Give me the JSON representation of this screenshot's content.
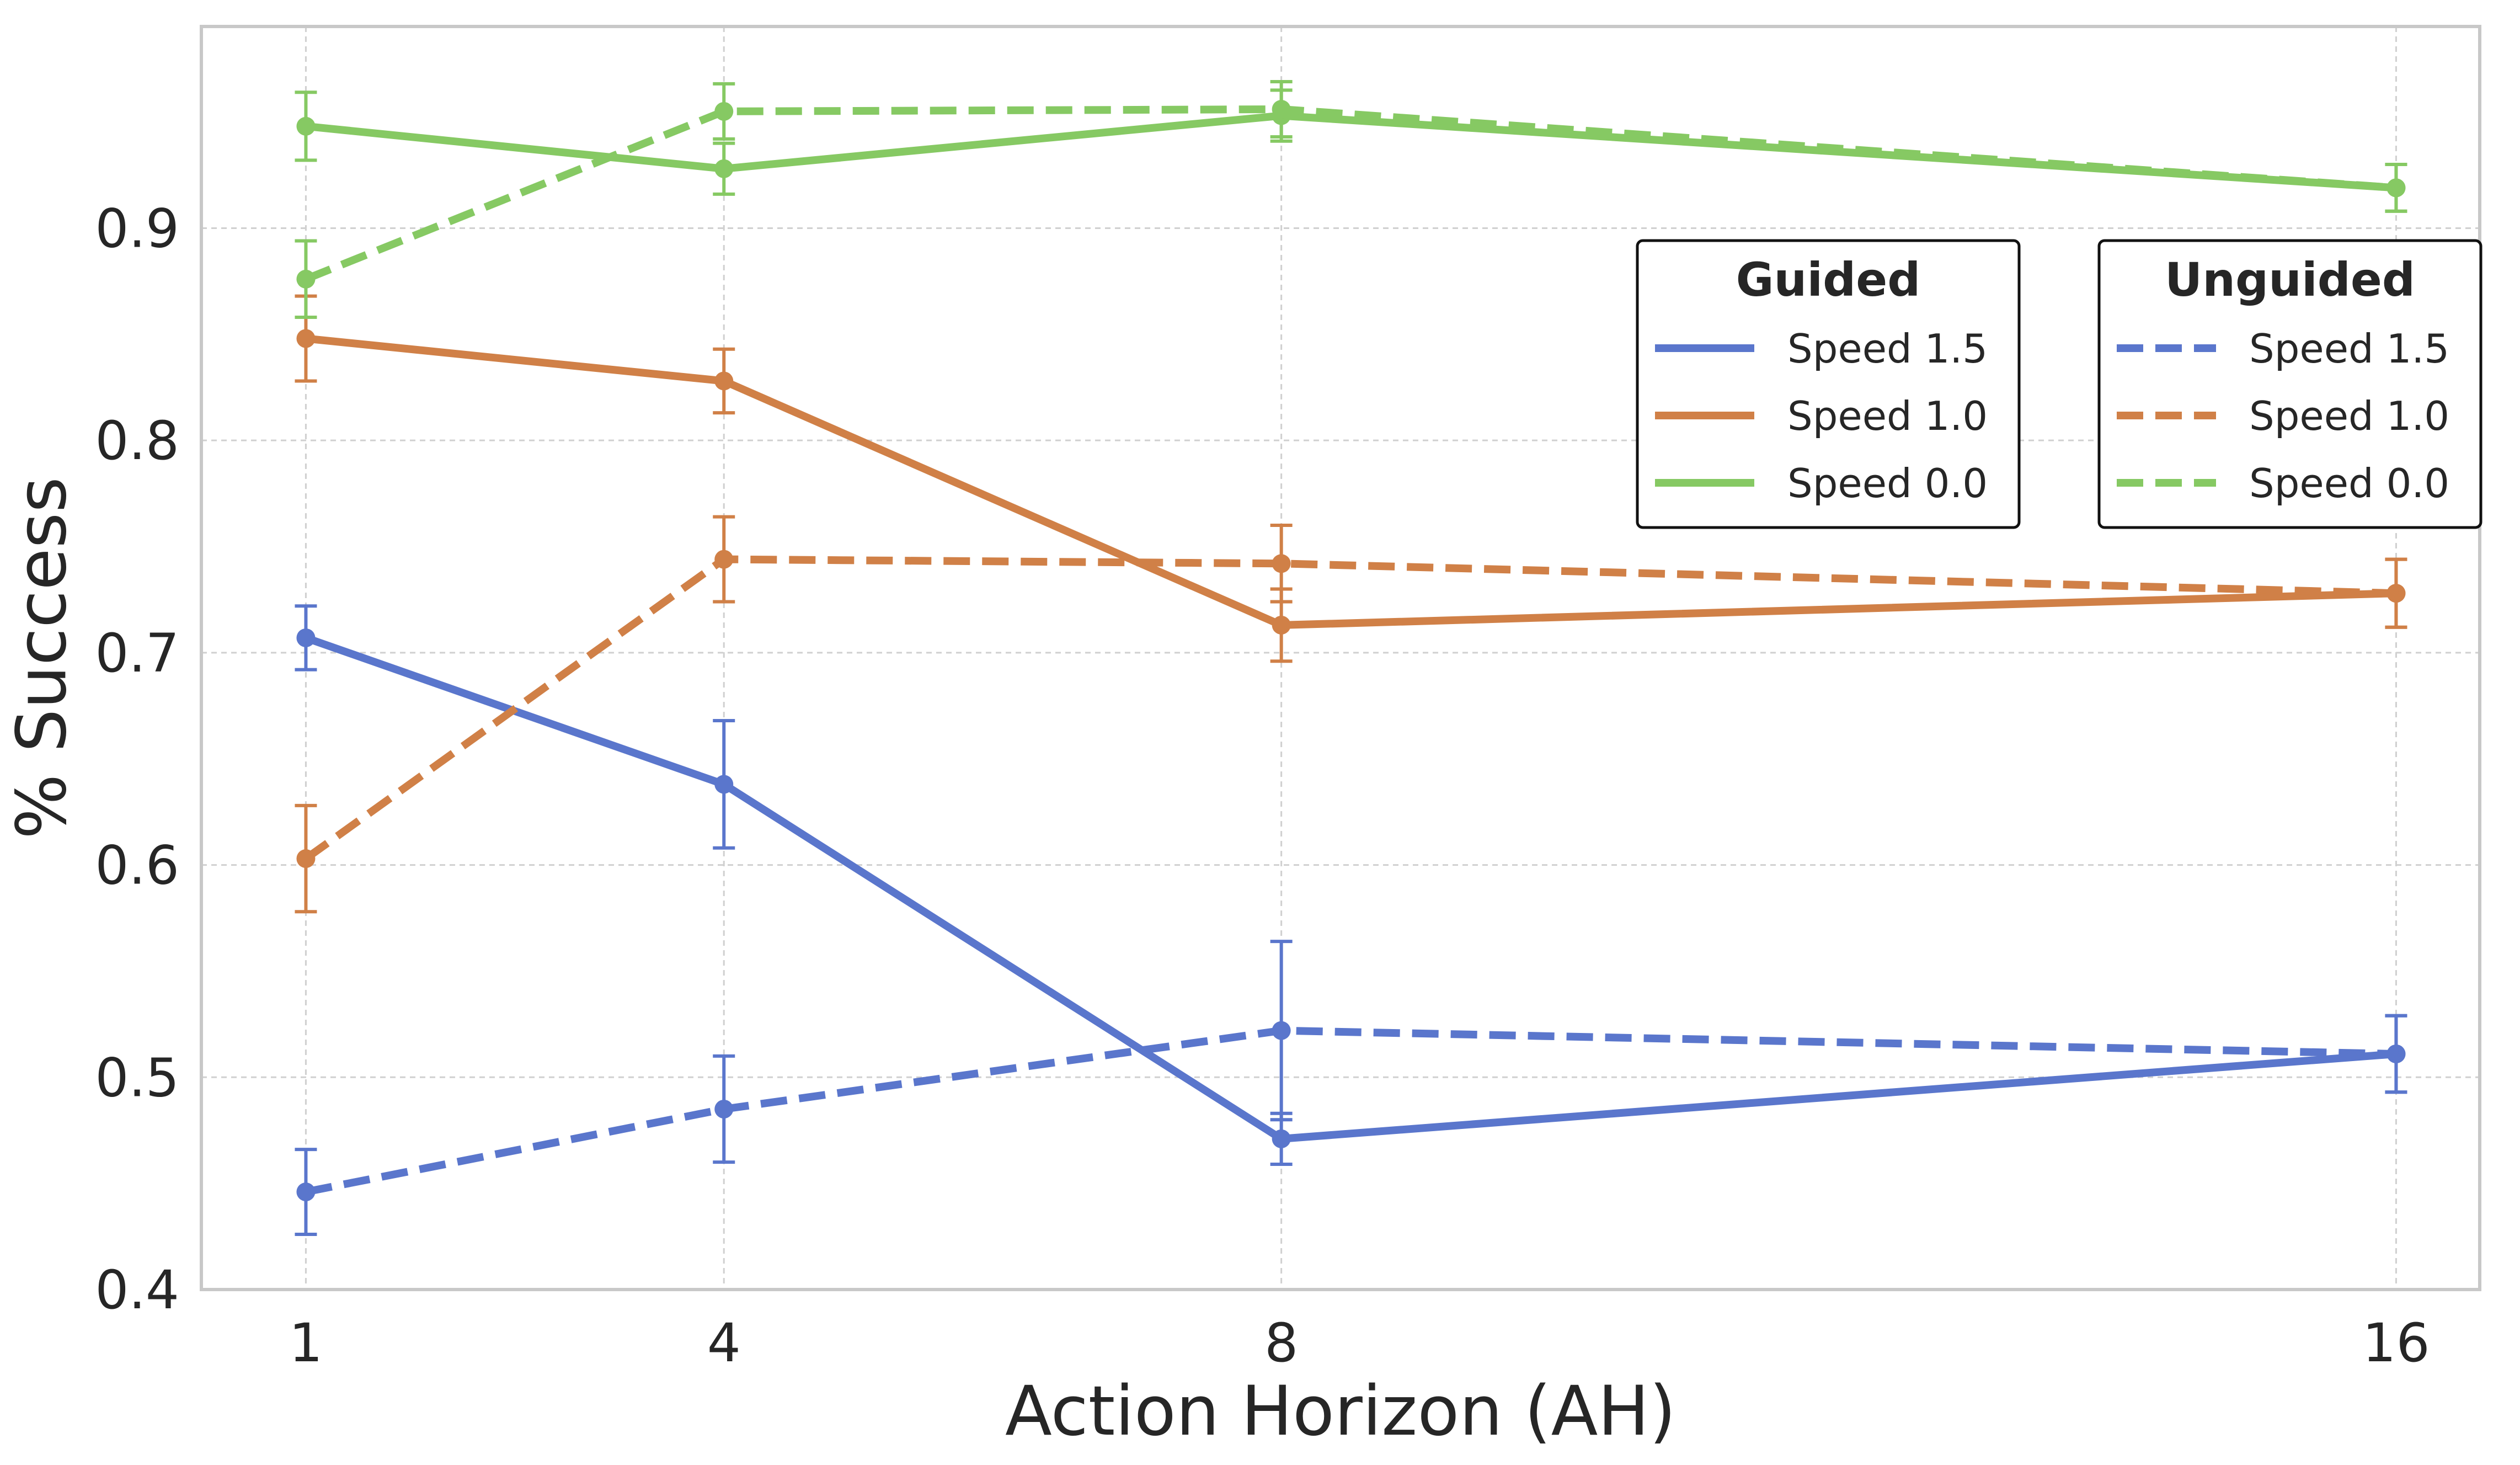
{
  "chart_data": {
    "type": "line",
    "xlabel": "Action Horizon (AH)",
    "ylabel": "% Success",
    "x": [
      1,
      4,
      8,
      16
    ],
    "x_tick_labels": [
      "1",
      "4",
      "8",
      "16"
    ],
    "y_ticks": [
      0.4,
      0.5,
      0.6,
      0.7,
      0.8,
      0.9
    ],
    "y_tick_labels": [
      "0.4",
      "0.5",
      "0.6",
      "0.7",
      "0.8",
      "0.9"
    ],
    "xlim": [
      0.25,
      16.6
    ],
    "ylim": [
      0.4,
      0.995
    ],
    "grid": true,
    "legends": [
      {
        "title": "Guided",
        "position": "upper-right (left of pair)",
        "entries": [
          "Speed 1.5",
          "Speed 1.0",
          "Speed 0.0"
        ],
        "style": "solid"
      },
      {
        "title": "Unguided",
        "position": "upper-right",
        "entries": [
          "Speed 1.5",
          "Speed 1.0",
          "Speed 0.0"
        ],
        "style": "dashed"
      }
    ],
    "series": [
      {
        "name": "Speed 1.5",
        "group": "Guided",
        "color": "#5a76cc",
        "style": "solid",
        "values": [
          0.707,
          0.638,
          0.471,
          0.511
        ],
        "err": [
          0.015,
          0.03,
          0.012,
          0.018
        ]
      },
      {
        "name": "Speed 1.0",
        "group": "Guided",
        "color": "#d08047",
        "style": "solid",
        "values": [
          0.848,
          0.828,
          0.713,
          0.728
        ],
        "err": [
          0.02,
          0.015,
          0.017,
          0.016
        ]
      },
      {
        "name": "Speed 0.0",
        "group": "Guided",
        "color": "#86c963",
        "style": "solid",
        "values": [
          0.948,
          0.928,
          0.953,
          0.919
        ],
        "err": [
          0.016,
          0.012,
          0.012,
          0.011
        ]
      },
      {
        "name": "Speed 1.5",
        "group": "Unguided",
        "color": "#5a76cc",
        "style": "dashed",
        "values": [
          0.446,
          0.485,
          0.522,
          0.511
        ],
        "err": [
          0.02,
          0.025,
          0.042,
          0.018
        ]
      },
      {
        "name": "Speed 1.0",
        "group": "Unguided",
        "color": "#d08047",
        "style": "dashed",
        "values": [
          0.603,
          0.744,
          0.742,
          0.728
        ],
        "err": [
          0.025,
          0.02,
          0.018,
          0.016
        ]
      },
      {
        "name": "Speed 0.0",
        "group": "Unguided",
        "color": "#86c963",
        "style": "dashed",
        "values": [
          0.876,
          0.955,
          0.956,
          0.919
        ],
        "err": [
          0.018,
          0.013,
          0.013,
          0.011
        ]
      }
    ]
  }
}
